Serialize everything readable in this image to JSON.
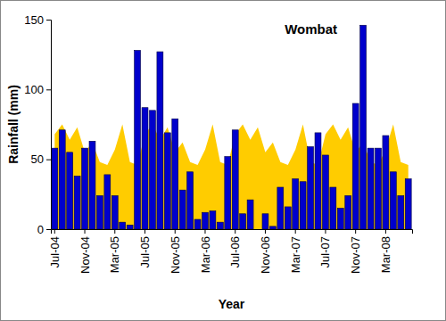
{
  "chart_data": {
    "type": "bar",
    "title": "Wombat",
    "x_label": "Year",
    "y_label": "Rainfall (mm)",
    "categories": [
      "Jul-04",
      null,
      null,
      null,
      "Nov-04",
      null,
      null,
      null,
      "Mar-05",
      null,
      null,
      null,
      "Jul-05",
      null,
      null,
      null,
      "Nov-05",
      null,
      null,
      null,
      "Mar-06",
      null,
      null,
      null,
      "Jul-06",
      null,
      null,
      null,
      "Nov-06",
      null,
      null,
      null,
      "Mar-07",
      null,
      null,
      null,
      "Jul-07",
      null,
      null,
      null,
      "Nov-07",
      null,
      null,
      null,
      "Mar-08",
      null,
      null,
      null
    ],
    "series": [
      {
        "type": "bar",
        "color": "#0000cc",
        "values": [
          58,
          71,
          55,
          38,
          58,
          63,
          24,
          39,
          24,
          5,
          3,
          128,
          87,
          85,
          127,
          69,
          79,
          28,
          41,
          7,
          12,
          13,
          5,
          52,
          71,
          11,
          21,
          0,
          11,
          2,
          30,
          16,
          36,
          34,
          59,
          69,
          53,
          30,
          15,
          24,
          90,
          146,
          58,
          58,
          67,
          41,
          24,
          36
        ]
      },
      {
        "type": "area",
        "color": "#ffcc00",
        "values": [
          68,
          75,
          64,
          73,
          55,
          62,
          48,
          46,
          57,
          75,
          48,
          46,
          68,
          75,
          64,
          73,
          55,
          62,
          48,
          46,
          57,
          75,
          48,
          46,
          68,
          75,
          64,
          73,
          55,
          62,
          48,
          46,
          57,
          75,
          48,
          46,
          68,
          75,
          64,
          73,
          55,
          62,
          48,
          46,
          57,
          75,
          48,
          46
        ]
      }
    ],
    "ylim": [
      0,
      150
    ],
    "yticks": [
      0,
      50,
      100,
      150
    ],
    "grid": false
  }
}
